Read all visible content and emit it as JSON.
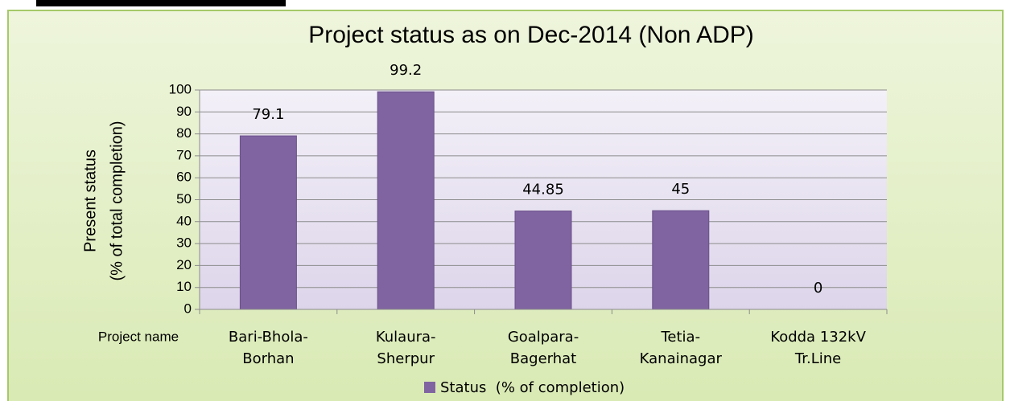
{
  "chart_data": {
    "type": "bar",
    "title": "Project status as on  Dec-2014 (Non ADP)",
    "ylabel": "Present status\n(% of total completion)",
    "xlabel": "Project name",
    "categories": [
      "Bari-Bhola-\nBorhan",
      "Kulaura-\nSherpur",
      "Goalpara-\nBagerhat",
      "Tetia-\nKanainagar",
      "Kodda 132kV\nTr.Line"
    ],
    "series": [
      {
        "name": "Status  (% of completion)",
        "color": "#8064a2",
        "values": [
          79.1,
          99.2,
          44.85,
          45,
          0
        ]
      }
    ],
    "ylim": [
      0,
      100
    ],
    "yticks": [
      0,
      10,
      20,
      30,
      40,
      50,
      60,
      70,
      80,
      90,
      100
    ],
    "grid": true,
    "legend": "bottom"
  }
}
